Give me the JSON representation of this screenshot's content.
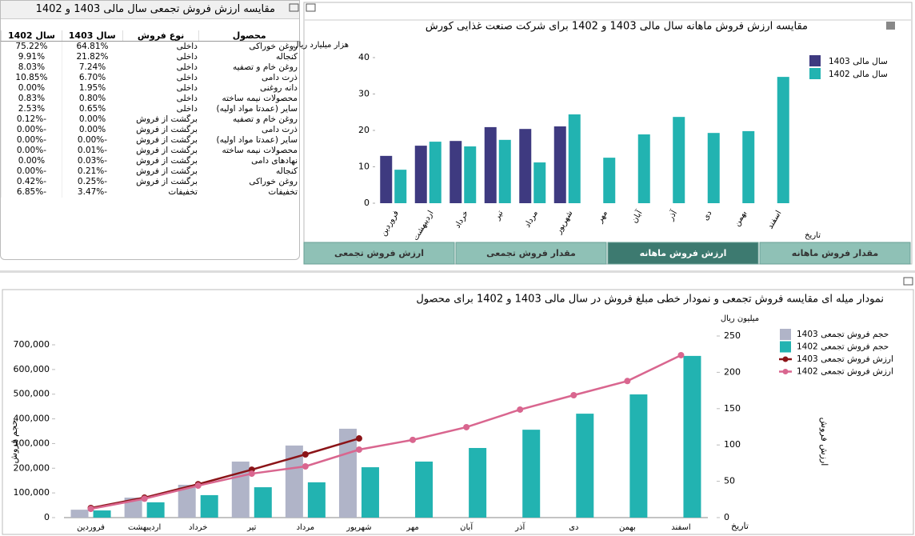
{
  "table": {
    "title": "مقایسه ارزش فروش تجمعی سال مالی 1403 و 1402",
    "columns": [
      "محصول",
      "نوع فروش",
      "سال 1403",
      "سال 1402"
    ],
    "rows": [
      [
        "روغن خوراکی",
        "داخلی",
        "64.81%",
        "75.22%"
      ],
      [
        "کنجاله",
        "داخلی",
        "21.82%",
        "9.91%"
      ],
      [
        "روغن خام و تصفیه",
        "داخلی",
        "7.24%",
        "8.03%"
      ],
      [
        "ذرت دامی",
        "داخلی",
        "6.70%",
        "10.85%"
      ],
      [
        "دانه روغنی",
        "داخلی",
        "1.95%",
        "0.00%"
      ],
      [
        "محصولات نیمه ساخته",
        "داخلی",
        "0.80%",
        "0.83%"
      ],
      [
        "سایر (عمدتا مواد اولیه)",
        "داخلی",
        "0.65%",
        "2.53%"
      ],
      [
        "روغن خام و تصفیه",
        "برگشت از فروش",
        "0.00%",
        "-0.12%"
      ],
      [
        "ذرت دامی",
        "برگشت از فروش",
        "0.00%",
        "-0.00%"
      ],
      [
        "سایر (عمدتا مواد اولیه)",
        "برگشت از فروش",
        "-0.00%",
        "-0.00%"
      ],
      [
        "محصولات نیمه ساخته",
        "برگشت از فروش",
        "-0.01%",
        "-0.00%"
      ],
      [
        "نهادهای دامی",
        "برگشت از فروش",
        "-0.03%",
        "0.00%"
      ],
      [
        "کنجاله",
        "برگشت از فروش",
        "-0.21%",
        "-0.00%"
      ],
      [
        "روغن خوراکی",
        "برگشت از فروش",
        "-0.25%",
        "-0.42%"
      ],
      [
        "تخفیفات",
        "تخفیفات",
        "-3.47%",
        "-6.85%"
      ]
    ]
  },
  "tabs": [
    "ارزش فروش تجمعی",
    "مقدار فروش تجمعی",
    "ارزش فروش ماهانه",
    "مقدار فروش ماهانه"
  ],
  "chart_data": [
    {
      "type": "bar",
      "title": "مقایسه ارزش فروش ماهانه سال مالی 1403 و 1402 برای شرکت صنعت غذایی کورش",
      "y_label": "هزار میلیارد ریال",
      "x_label": "تاریخ",
      "categories": [
        "فروردین",
        "اردیبهشت",
        "خرداد",
        "تیر",
        "مرداد",
        "شهریور",
        "مهر",
        "آبان",
        "آذر",
        "دی",
        "بهمن",
        "اسفند"
      ],
      "series": [
        {
          "name": "سال مالی 1403",
          "color": "#3e3a80",
          "values": [
            13.0,
            15.8,
            17.1,
            20.9,
            20.4,
            21.1,
            null,
            null,
            null,
            null,
            null,
            null
          ]
        },
        {
          "name": "سال مالی 1402",
          "color": "#22b3b1",
          "values": [
            9.2,
            16.9,
            15.6,
            17.4,
            11.2,
            24.4,
            12.5,
            18.9,
            23.7,
            19.3,
            19.8,
            34.7
          ]
        }
      ],
      "ylim": [
        0,
        40
      ],
      "yticks": [
        0,
        10,
        20,
        30,
        40
      ]
    },
    {
      "type": "combo",
      "title": "نمودار میله ای مقایسه فروش تجمعی و نمودار خطی مبلغ فروش در سال مالی 1403 و 1402 برای محصول",
      "y_label": "حجم فروش",
      "y2_label": "ارزش فروش",
      "y2_unit": "میلیون ریال",
      "x_label": "تاریخ",
      "categories": [
        "فروردین",
        "اردیبهشت",
        "خرداد",
        "تیر",
        "مرداد",
        "شهریور",
        "مهر",
        "آبان",
        "آذر",
        "دی",
        "بهمن",
        "اسفند"
      ],
      "series": [
        {
          "name": "حجم فروش تجمعی 1403",
          "type": "bar",
          "color": "#b0b4c8",
          "values": [
            32000,
            81000,
            133000,
            227000,
            292000,
            360000,
            null,
            null,
            null,
            null,
            null,
            null
          ]
        },
        {
          "name": "حجم فروش تجمعی 1402",
          "type": "bar",
          "color": "#22b3b1",
          "values": [
            29000,
            62000,
            91000,
            123000,
            143000,
            204000,
            227000,
            282000,
            356000,
            421000,
            499000,
            655000
          ]
        },
        {
          "name": "ارزش فروش تجمعی 1403",
          "type": "line",
          "axis": "y2",
          "color": "#8b1418",
          "values": [
            13.2,
            27.5,
            46,
            66,
            87,
            109,
            null,
            null,
            null,
            null,
            null,
            null
          ]
        },
        {
          "name": "ارزش فروش تجمعی 1402",
          "type": "line",
          "axis": "y2",
          "color": "#d9668f",
          "values": [
            12,
            26,
            44,
            60.5,
            70.5,
            93.6,
            107,
            124.5,
            148.7,
            168.5,
            188,
            223.6
          ]
        }
      ],
      "ylim": [
        0,
        700000
      ],
      "yticks": [
        0,
        {
          "value": 100000,
          "label": "100,000"
        },
        {
          "value": 200000,
          "label": "200,000"
        },
        {
          "value": 300000,
          "label": "300,000"
        },
        {
          "value": 400000,
          "label": "400,000"
        },
        {
          "value": 500000,
          "label": "500,000"
        },
        {
          "value": 600000,
          "label": "600,000"
        },
        {
          "value": 700000,
          "label": "700,000"
        }
      ],
      "y2lim": [
        0,
        250
      ],
      "y2ticks": [
        0,
        50,
        100,
        150,
        200,
        250
      ]
    }
  ]
}
